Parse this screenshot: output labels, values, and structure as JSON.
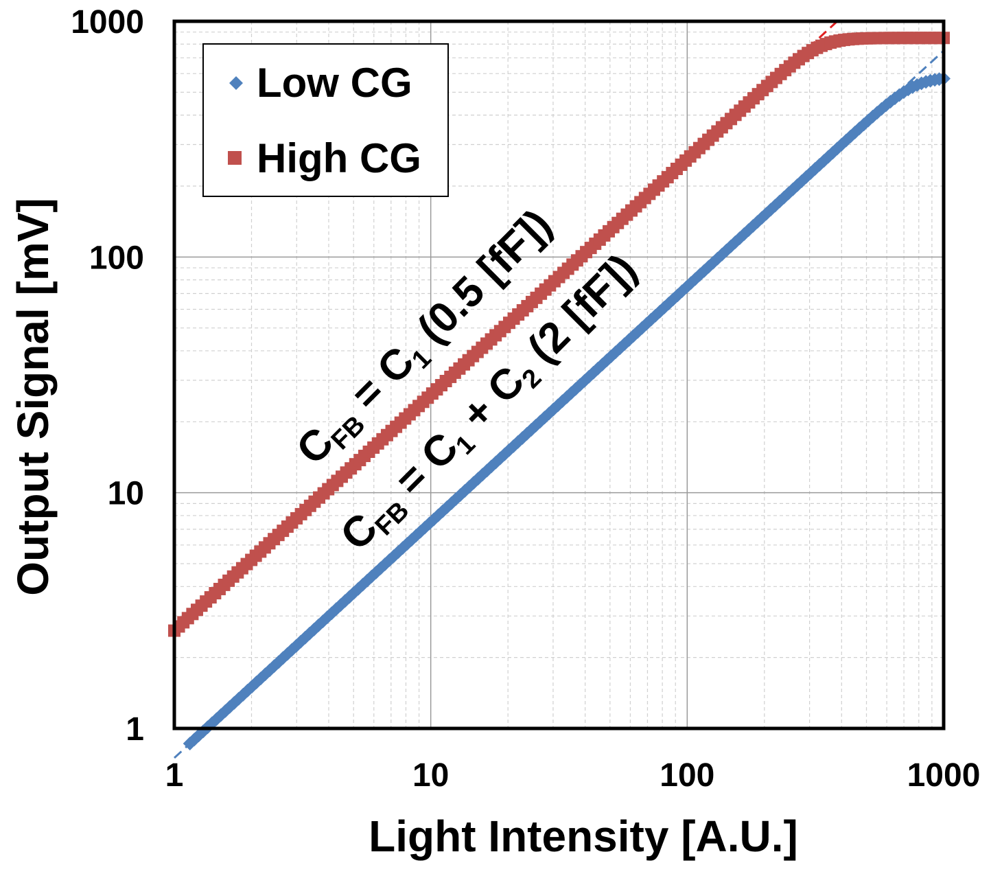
{
  "chart_data": {
    "type": "scatter",
    "xscale": "log",
    "yscale": "log",
    "xlabel": "Light Intensity [A.U.]",
    "ylabel": "Output Signal [mV]",
    "xlim": [
      1,
      1000
    ],
    "ylim": [
      1,
      1000
    ],
    "xticks": [
      "1",
      "10",
      "100",
      "1000"
    ],
    "yticks": [
      "1",
      "10",
      "100",
      "1000"
    ],
    "grid": true,
    "legend_position": "top-left",
    "series": [
      {
        "name": "Low CG",
        "marker": "diamond",
        "color": "#4F81BD",
        "fit_color": "#4F81BD",
        "fit_style": "dashed",
        "fit_slope": 1.0,
        "fit_intercept_at_x1": 0.75,
        "saturation_value": 580,
        "x_start": 1.15
      },
      {
        "name": "High CG",
        "marker": "square",
        "color": "#C0504D",
        "fit_color": "#E02020",
        "fit_style": "dashed",
        "fit_slope": 1.0,
        "fit_intercept_at_x1": 2.6,
        "saturation_value": 850,
        "x_start": 1.0
      }
    ],
    "annotations": [
      {
        "base": "C",
        "sub1": "FB",
        "eq": " = C",
        "sub2": "1",
        "rest": " (0.5 [fF])"
      },
      {
        "base": "C",
        "sub1": "FB",
        "eq": " = C",
        "sub2": "1",
        "mid": " + C",
        "sub3": "2",
        "rest": " (2 [fF])"
      }
    ]
  }
}
